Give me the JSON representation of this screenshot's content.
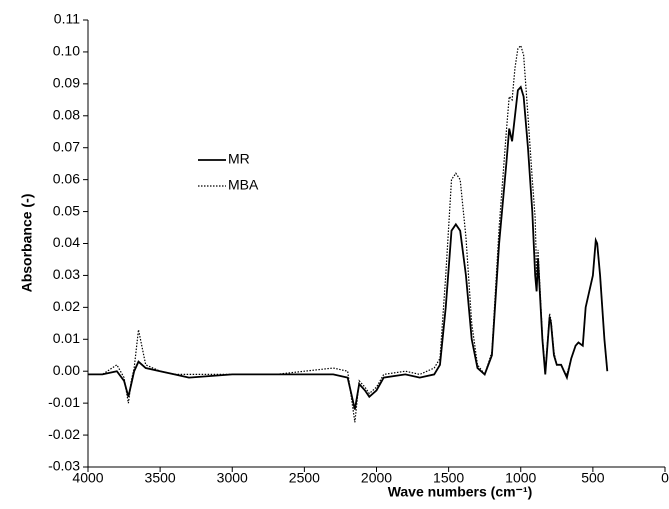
{
  "chart_data": {
    "type": "line",
    "xlabel": "Wave numbers (cm⁻¹)",
    "ylabel": "Absorbance (-)",
    "xlim": [
      4000,
      0
    ],
    "xticks": [
      4000,
      3500,
      3000,
      2500,
      2000,
      1500,
      1000,
      500,
      0
    ],
    "ylim": [
      -0.03,
      0.11
    ],
    "yticks": [
      0.11,
      {
        "value": 0.1,
        "label": "0.10"
      },
      0.09,
      0.08,
      0.07,
      0.06,
      0.05,
      0.04,
      0.03,
      0.02,
      0.01,
      {
        "value": 0,
        "label": "0.00"
      },
      -0.01,
      -0.02,
      -0.03
    ],
    "x": [
      4000,
      3900,
      3800,
      3750,
      3720,
      3700,
      3680,
      3650,
      3600,
      3500,
      3400,
      3300,
      3000,
      2700,
      2500,
      2300,
      2200,
      2150,
      2120,
      2080,
      2050,
      2000,
      1950,
      1800,
      1700,
      1600,
      1560,
      1520,
      1480,
      1450,
      1420,
      1380,
      1340,
      1300,
      1250,
      1200,
      1150,
      1100,
      1080,
      1060,
      1040,
      1020,
      1000,
      980,
      950,
      920,
      900,
      890,
      880,
      850,
      830,
      800,
      790,
      770,
      750,
      720,
      700,
      680,
      650,
      620,
      600,
      570,
      550,
      520,
      500,
      480,
      470,
      450,
      420,
      400
    ],
    "legend": "upper-left",
    "series": [
      {
        "name": "MR",
        "color": "#000000",
        "style": "solid",
        "values": [
          -0.001,
          -0.001,
          0.0,
          -0.003,
          -0.008,
          -0.004,
          0.0,
          0.003,
          0.001,
          0.0,
          -0.001,
          -0.002,
          -0.001,
          -0.001,
          -0.001,
          -0.001,
          -0.002,
          -0.012,
          -0.004,
          -0.006,
          -0.008,
          -0.006,
          -0.002,
          -0.001,
          -0.002,
          -0.001,
          0.002,
          0.02,
          0.044,
          0.046,
          0.044,
          0.03,
          0.01,
          0.001,
          -0.001,
          0.005,
          0.04,
          0.065,
          0.076,
          0.072,
          0.08,
          0.088,
          0.089,
          0.086,
          0.07,
          0.05,
          0.03,
          0.025,
          0.035,
          0.01,
          -0.001,
          0.017,
          0.015,
          0.005,
          0.002,
          0.002,
          0.0,
          -0.002,
          0.004,
          0.008,
          0.009,
          0.008,
          0.02,
          0.026,
          0.03,
          0.041,
          0.04,
          0.03,
          0.01,
          0.0
        ]
      },
      {
        "name": "MBA",
        "color": "#000000",
        "style": "dotted",
        "values": [
          -0.001,
          -0.001,
          0.002,
          -0.002,
          -0.01,
          -0.003,
          0.001,
          0.013,
          0.002,
          0.0,
          -0.001,
          -0.001,
          -0.001,
          -0.001,
          0.0,
          0.001,
          0.0,
          -0.016,
          -0.003,
          -0.005,
          -0.007,
          -0.005,
          -0.001,
          0.0,
          -0.001,
          0.001,
          0.004,
          0.03,
          0.06,
          0.062,
          0.06,
          0.042,
          0.015,
          0.002,
          -0.001,
          0.006,
          0.045,
          0.075,
          0.086,
          0.085,
          0.095,
          0.101,
          0.102,
          0.099,
          0.08,
          0.06,
          0.048,
          0.03,
          0.038,
          0.011,
          0.0,
          0.018,
          0.016,
          0.006,
          0.002,
          0.002,
          0.0,
          -0.001,
          0.004,
          0.008,
          0.009,
          0.008,
          0.02,
          0.026,
          0.03,
          0.041,
          0.04,
          0.03,
          0.01,
          0.0
        ]
      }
    ]
  }
}
